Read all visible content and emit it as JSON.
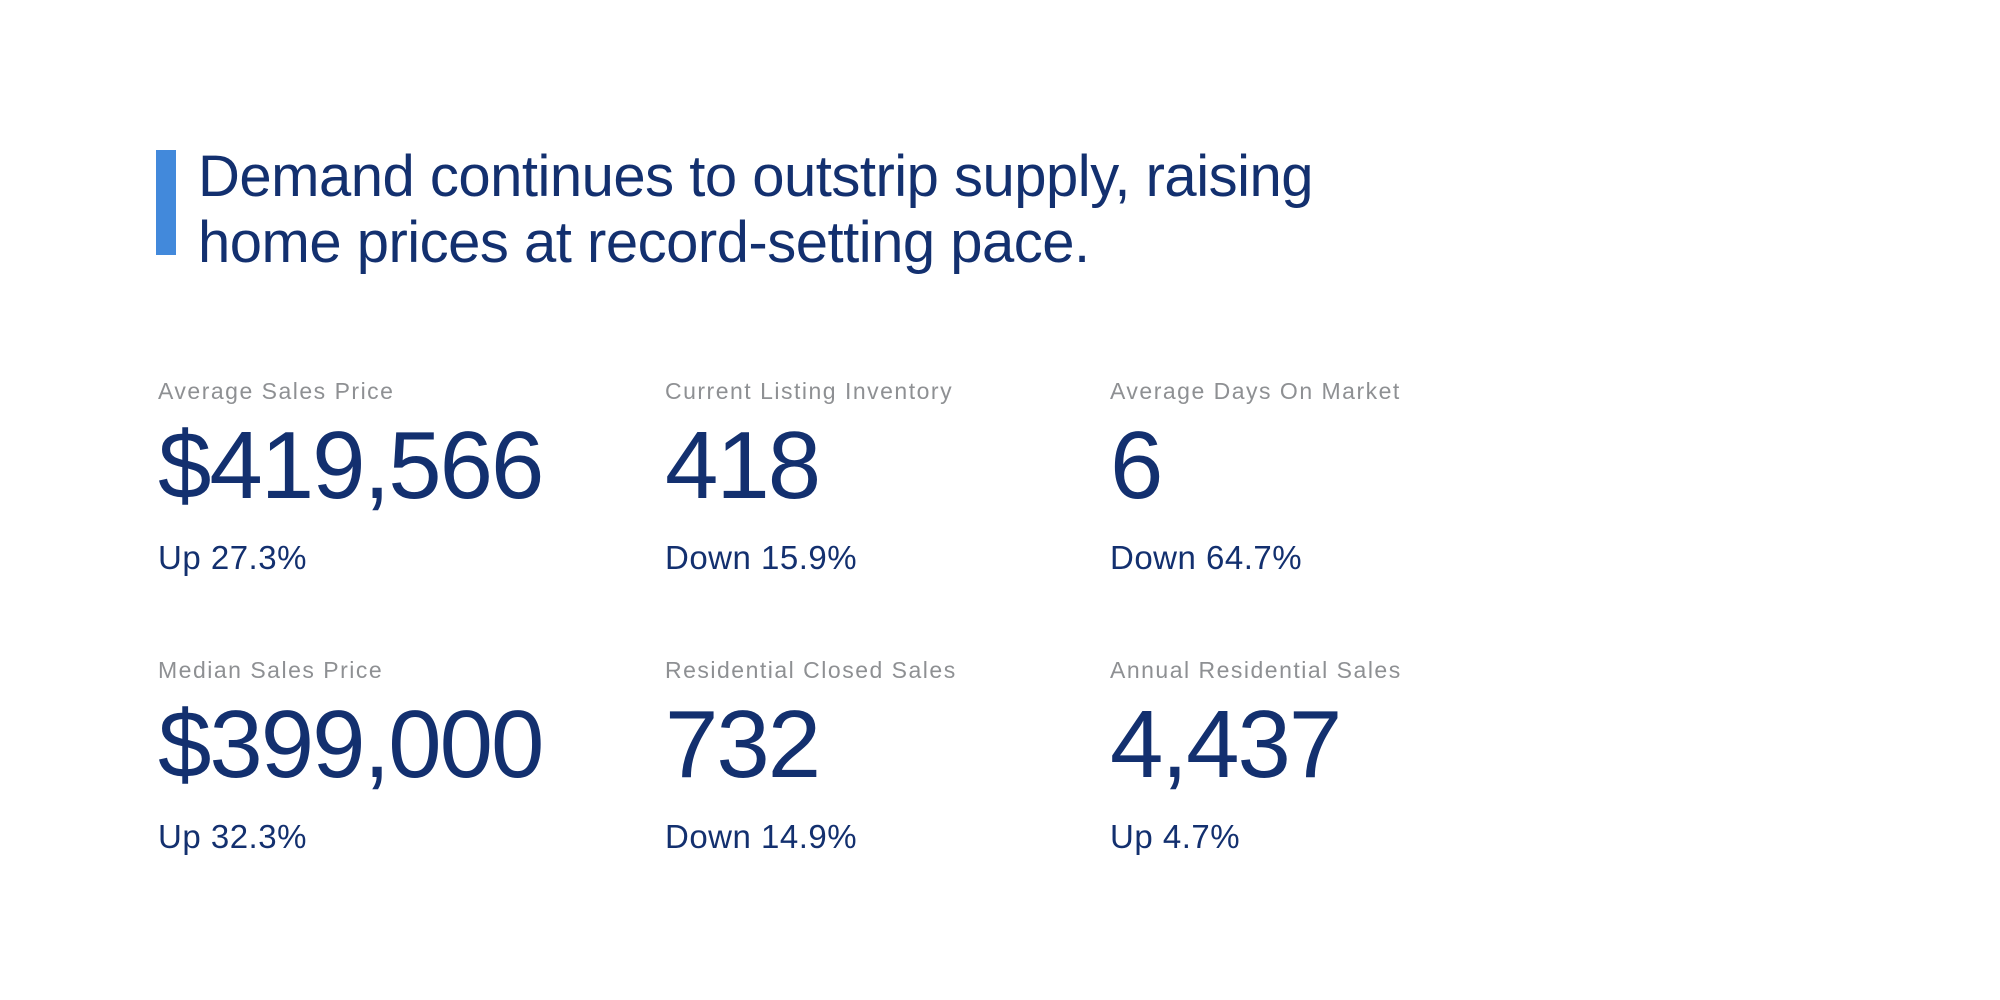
{
  "headline": {
    "line1": "Demand continues to outstrip supply, raising",
    "line2": "home prices at record-setting pace."
  },
  "stats": [
    {
      "label": "Average Sales Price",
      "value": "$419,566",
      "change": "Up 27.3%",
      "direction": "up"
    },
    {
      "label": "Current Listing Inventory",
      "value": "418",
      "change": "Down 15.9%",
      "direction": "down"
    },
    {
      "label": "Average Days On Market",
      "value": "6",
      "change": "Down 64.7%",
      "direction": "down"
    },
    {
      "label": "Median Sales Price",
      "value": "$399,000",
      "change": "Up 32.3%",
      "direction": "up"
    },
    {
      "label": "Residential Closed Sales",
      "value": "732",
      "change": "Down 14.9%",
      "direction": "down"
    },
    {
      "label": "Annual Residential Sales",
      "value": "4,437",
      "change": "Up 4.7%",
      "direction": "up"
    }
  ],
  "colors": {
    "accent": "#4289db",
    "navy": "#13306f",
    "label_gray": "#8e9093",
    "background": "#ffffff"
  }
}
